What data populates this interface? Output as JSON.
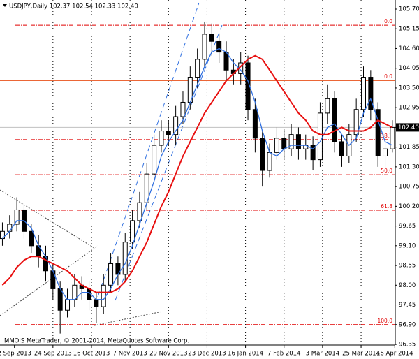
{
  "chart_data": {
    "type": "candlestick",
    "title": "USDJPY,Daily  102.37 102.54 102.33 102.40",
    "footer": "MMOIS MetaTrader, © 2001-2014, MetaQuotes Software Corp.",
    "x": [
      0,
      3,
      6,
      9,
      12,
      15,
      18,
      21,
      24,
      27,
      30,
      33,
      36,
      39,
      42,
      45,
      48,
      51,
      54,
      57,
      60,
      63,
      66,
      69,
      72,
      75,
      78,
      81,
      84,
      87,
      90,
      93,
      96,
      99,
      102,
      105,
      108,
      111,
      114,
      117,
      120,
      123,
      126,
      129,
      132,
      135,
      138,
      141,
      144,
      147,
      150,
      153,
      156,
      159,
      162
    ],
    "open": [
      99.3,
      99.5,
      99.7,
      100.1,
      99.5,
      99.1,
      98.8,
      98.4,
      97.9,
      97.3,
      97.6,
      98.0,
      97.9,
      97.6,
      97.4,
      98.0,
      98.6,
      98.3,
      99.2,
      99.8,
      100.3,
      101.1,
      101.9,
      102.3,
      102.2,
      102.7,
      103.1,
      103.8,
      104.3,
      105.0,
      104.8,
      104.5,
      104.0,
      103.9,
      104.2,
      102.9,
      102.1,
      101.2,
      101.7,
      102.1,
      101.8,
      102.2,
      101.8,
      101.9,
      101.5,
      102.8,
      103.2,
      102.0,
      101.6,
      102.2,
      102.9,
      103.8,
      102.9,
      101.6,
      101.8
    ],
    "high": [
      99.75,
      99.95,
      100.45,
      100.3,
      99.7,
      99.4,
      99.1,
      98.6,
      98.1,
      97.9,
      98.3,
      98.25,
      98.1,
      97.8,
      98.3,
      98.9,
      98.8,
      99.45,
      100.1,
      100.6,
      101.4,
      102.2,
      102.6,
      102.6,
      103.0,
      103.4,
      104.1,
      104.6,
      105.35,
      105.3,
      105.0,
      104.8,
      104.3,
      104.5,
      104.4,
      103.2,
      102.3,
      101.95,
      102.4,
      102.35,
      102.5,
      102.4,
      102.2,
      102.15,
      103.1,
      103.6,
      103.4,
      102.2,
      102.5,
      103.2,
      104.1,
      104.0,
      103.1,
      102.1,
      102.6
    ],
    "low": [
      99.1,
      99.3,
      99.5,
      99.3,
      98.9,
      98.5,
      98.1,
      97.6,
      96.65,
      97.1,
      97.4,
      97.6,
      97.3,
      96.95,
      97.2,
      97.8,
      98.0,
      98.1,
      99.0,
      99.6,
      100.1,
      100.9,
      101.7,
      101.9,
      101.9,
      102.5,
      102.9,
      103.5,
      104.1,
      104.4,
      104.2,
      103.7,
      103.6,
      103.6,
      102.6,
      101.7,
      100.75,
      101.0,
      101.5,
      101.5,
      101.6,
      101.5,
      101.5,
      101.2,
      101.3,
      102.5,
      101.7,
      101.3,
      101.4,
      102.0,
      102.7,
      102.6,
      101.3,
      101.25,
      101.7
    ],
    "close": [
      99.5,
      99.7,
      100.1,
      99.5,
      99.1,
      98.8,
      98.4,
      97.9,
      97.3,
      97.6,
      98.0,
      97.9,
      97.6,
      97.4,
      98.0,
      98.6,
      98.3,
      99.2,
      99.8,
      100.3,
      101.1,
      101.9,
      102.3,
      102.2,
      102.7,
      103.1,
      103.8,
      104.3,
      105.0,
      104.8,
      104.5,
      104.0,
      103.9,
      104.2,
      102.9,
      102.1,
      101.2,
      101.7,
      102.1,
      101.8,
      102.2,
      101.8,
      101.9,
      101.5,
      102.8,
      103.2,
      102.0,
      101.6,
      102.2,
      102.9,
      103.8,
      102.9,
      101.6,
      101.8,
      102.4
    ],
    "up_color": "#ffffff",
    "down_color": "#000000",
    "series": [
      {
        "color": "#2f6fe0",
        "values": [
          99.3,
          99.5,
          99.8,
          99.8,
          99.6,
          99.1,
          98.8,
          98.4,
          97.9,
          97.6,
          97.6,
          97.8,
          97.8,
          97.6,
          97.6,
          97.9,
          98.3,
          98.6,
          99.1,
          99.7,
          100.3,
          100.9,
          101.6,
          102.0,
          102.3,
          102.6,
          103.1,
          103.6,
          104.1,
          104.5,
          104.6,
          104.5,
          104.2,
          104.0,
          103.7,
          103.1,
          102.3,
          101.7,
          101.6,
          101.8,
          101.9,
          101.9,
          101.9,
          101.8,
          102.0,
          102.4,
          102.5,
          102.2,
          101.9,
          102.1,
          102.8,
          103.2,
          102.6,
          102.0,
          101.9
        ]
      },
      {
        "color": "#e81010",
        "values": [
          98.0,
          98.2,
          98.5,
          98.7,
          98.8,
          98.8,
          98.7,
          98.6,
          98.5,
          98.4,
          98.2,
          98.0,
          97.9,
          97.8,
          97.8,
          97.8,
          97.9,
          98.1,
          98.4,
          98.8,
          99.2,
          99.7,
          100.2,
          100.6,
          101.1,
          101.6,
          102.0,
          102.4,
          102.8,
          103.1,
          103.4,
          103.7,
          103.9,
          104.1,
          104.3,
          104.4,
          104.3,
          104.0,
          103.7,
          103.4,
          103.1,
          102.8,
          102.6,
          102.3,
          102.2,
          102.2,
          102.3,
          102.4,
          102.3,
          102.3,
          102.3,
          102.4,
          102.6,
          102.5,
          102.4
        ]
      }
    ],
    "levels": [
      {
        "label": "0.0",
        "value": 105.25,
        "style": "dashdot"
      },
      {
        "label": "0.0",
        "value": 103.71,
        "style": "solid"
      },
      {
        "label": "38.2",
        "value": 102.06,
        "style": "dashdot"
      },
      {
        "label": "50.0",
        "value": 101.08,
        "style": "dashdot"
      },
      {
        "label": "61.8",
        "value": 100.09,
        "style": "dashdot"
      },
      {
        "label": "100.0",
        "value": 96.9,
        "style": "dashdot"
      }
    ],
    "current_price": {
      "value": 102.4,
      "label": "102.40"
    },
    "xlim": [
      -1,
      163.2
    ],
    "xticks": [
      {
        "value": 5,
        "label": "2 Sep 2013"
      },
      {
        "value": 21,
        "label": "24 Sep 2013"
      },
      {
        "value": 37,
        "label": "16 Oct 2013"
      },
      {
        "value": 53,
        "label": "7 Nov 2013"
      },
      {
        "value": 69,
        "label": "29 Nov 2013"
      },
      {
        "value": 85,
        "label": "23 Dec 2013"
      },
      {
        "value": 101,
        "label": "16 Jan 2014"
      },
      {
        "value": 117,
        "label": "7 Feb 2014"
      },
      {
        "value": 133,
        "label": "3 Mar 2014"
      },
      {
        "value": 149,
        "label": "25 Mar 2014"
      },
      {
        "value": 163,
        "label": "16 Apr 2014"
      }
    ],
    "ylim": [
      96.35,
      105.7
    ],
    "yticks": [
      {
        "value": 105.7,
        "label": "105.70"
      },
      105.15,
      {
        "value": 104.6,
        "label": "104.60"
      },
      104.05,
      {
        "value": 103.5,
        "label": "103.50"
      },
      102.95,
      {
        "value": 102.4,
        "label": "102.40"
      },
      101.85,
      {
        "value": 101.3,
        "label": "101.30"
      },
      100.75,
      {
        "value": 100.2,
        "label": "100.20"
      },
      99.65,
      {
        "value": 99.1,
        "label": "99.10"
      },
      98.55,
      {
        "value": 98.0,
        "label": "98.00"
      },
      97.45,
      {
        "value": 96.9,
        "label": "96.90"
      },
      96.35
    ],
    "grid": true
  }
}
